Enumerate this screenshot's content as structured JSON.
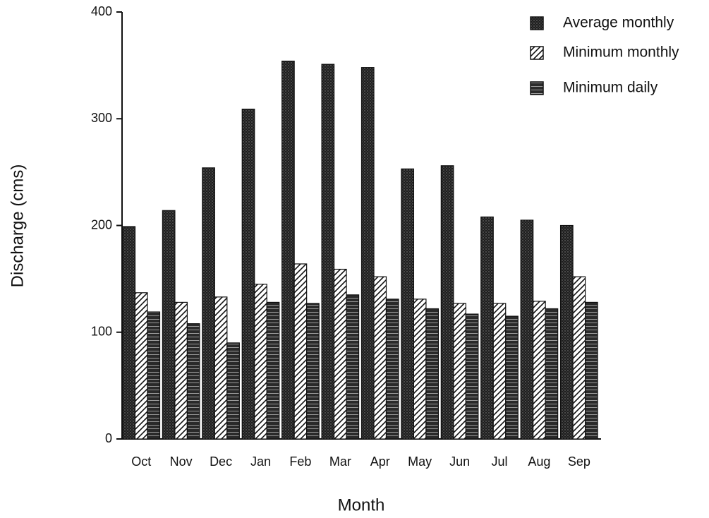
{
  "chart_data": {
    "type": "bar",
    "x_label": "Month",
    "y_label": "Discharge  (cms)",
    "categories": [
      "Oct",
      "Nov",
      "Dec",
      "Jan",
      "Feb",
      "Mar",
      "Apr",
      "May",
      "Jun",
      "Jul",
      "Aug",
      "Sep"
    ],
    "series": [
      {
        "name": "Average monthly",
        "color": "#1e1e1e",
        "values": [
          199,
          214,
          254,
          309,
          354,
          351,
          348,
          253,
          256,
          208,
          205,
          200
        ]
      },
      {
        "name": "Minimum monthly",
        "color": "#ffffff",
        "values": [
          137,
          128,
          133,
          145,
          164,
          159,
          152,
          131,
          127,
          127,
          129,
          152
        ]
      },
      {
        "name": "Minimum daily",
        "color": "#2a2a2a",
        "values": [
          119,
          108,
          90,
          128,
          127,
          135,
          131,
          122,
          117,
          115,
          122,
          128
        ]
      }
    ],
    "ylim": [
      0,
      400
    ],
    "yticks": [
      0,
      100,
      200,
      300,
      400
    ],
    "grid": false,
    "legend": "top-right"
  }
}
